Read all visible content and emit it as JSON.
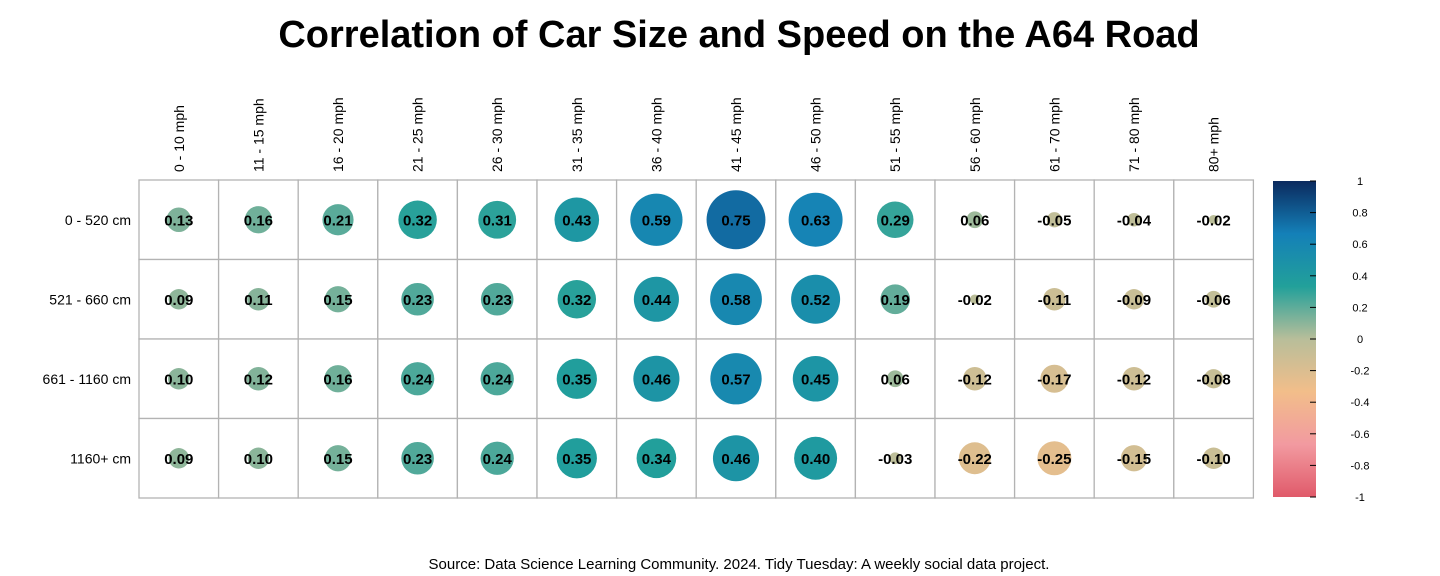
{
  "title": "Correlation of Car Size and Speed on the A64 Road",
  "source": "Source: Data Science Learning Community. 2024. Tidy Tuesday: A weekly social data project.",
  "colors": {
    "scale": [
      "#E05A6A",
      "#F29AA0",
      "#F2BE8A",
      "#B8BE9A",
      "#22A09A",
      "#1480B8",
      "#0B2A5E"
    ],
    "grid": "#b3b3b3"
  },
  "chart_data": {
    "type": "heatmap",
    "title": "Correlation of Car Size and Speed on the A64 Road",
    "rows": [
      "0 - 520 cm",
      "521 - 660 cm",
      "661 - 1160 cm",
      "1160+ cm"
    ],
    "columns": [
      "0 - 10 mph",
      "11 - 15 mph",
      "16 - 20 mph",
      "21 - 25 mph",
      "26 - 30 mph",
      "31 - 35 mph",
      "36 - 40 mph",
      "41 - 45 mph",
      "46 - 50 mph",
      "51 - 55 mph",
      "56 - 60 mph",
      "61 - 70 mph",
      "71 - 80 mph",
      "80+ mph"
    ],
    "values": [
      [
        0.13,
        0.16,
        0.21,
        0.32,
        0.31,
        0.43,
        0.59,
        0.75,
        0.63,
        0.29,
        0.06,
        -0.05,
        -0.04,
        -0.02
      ],
      [
        0.09,
        0.11,
        0.15,
        0.23,
        0.23,
        0.32,
        0.44,
        0.58,
        0.52,
        0.19,
        -0.02,
        -0.11,
        -0.09,
        -0.06
      ],
      [
        0.1,
        0.12,
        0.16,
        0.24,
        0.24,
        0.35,
        0.46,
        0.57,
        0.45,
        0.06,
        -0.12,
        -0.17,
        -0.12,
        -0.08
      ],
      [
        0.09,
        0.1,
        0.15,
        0.23,
        0.24,
        0.35,
        0.34,
        0.46,
        0.4,
        -0.03,
        -0.22,
        -0.25,
        -0.15,
        -0.1
      ]
    ],
    "value_labels": [
      [
        "0.13",
        "0.16",
        "0.21",
        "0.32",
        "0.31",
        "0.43",
        "0.59",
        "0.75",
        "0.63",
        "0.29",
        "0.06",
        "-0.05",
        "-0.04",
        "-0.02"
      ],
      [
        "0.09",
        "0.11",
        "0.15",
        "0.23",
        "0.23",
        "0.32",
        "0.44",
        "0.58",
        "0.52",
        "0.19",
        "-0.02",
        "-0.11",
        "-0.09",
        "-0.06"
      ],
      [
        "0.10",
        "0.12",
        "0.16",
        "0.24",
        "0.24",
        "0.35",
        "0.46",
        "0.57",
        "0.45",
        "0.06",
        "-0.12",
        "-0.17",
        "-0.12",
        "-0.08"
      ],
      [
        "0.09",
        "0.10",
        "0.15",
        "0.23",
        "0.24",
        "0.35",
        "0.34",
        "0.46",
        "0.40",
        "-0.03",
        "-0.22",
        "-0.25",
        "-0.15",
        "-0.10"
      ]
    ],
    "colorbar": {
      "range": [
        -1,
        1
      ],
      "ticks": [
        1,
        0.8,
        0.6,
        0.4,
        0.2,
        0,
        -0.2,
        -0.4,
        -0.6,
        -0.8,
        -1
      ],
      "tick_labels": [
        "1",
        "0.8",
        "0.6",
        "0.4",
        "0.2",
        "0",
        "-0.2",
        "-0.4",
        "-0.6",
        "-0.8",
        "-1"
      ],
      "placement": "right"
    },
    "marker": "circle sized by |value|"
  }
}
